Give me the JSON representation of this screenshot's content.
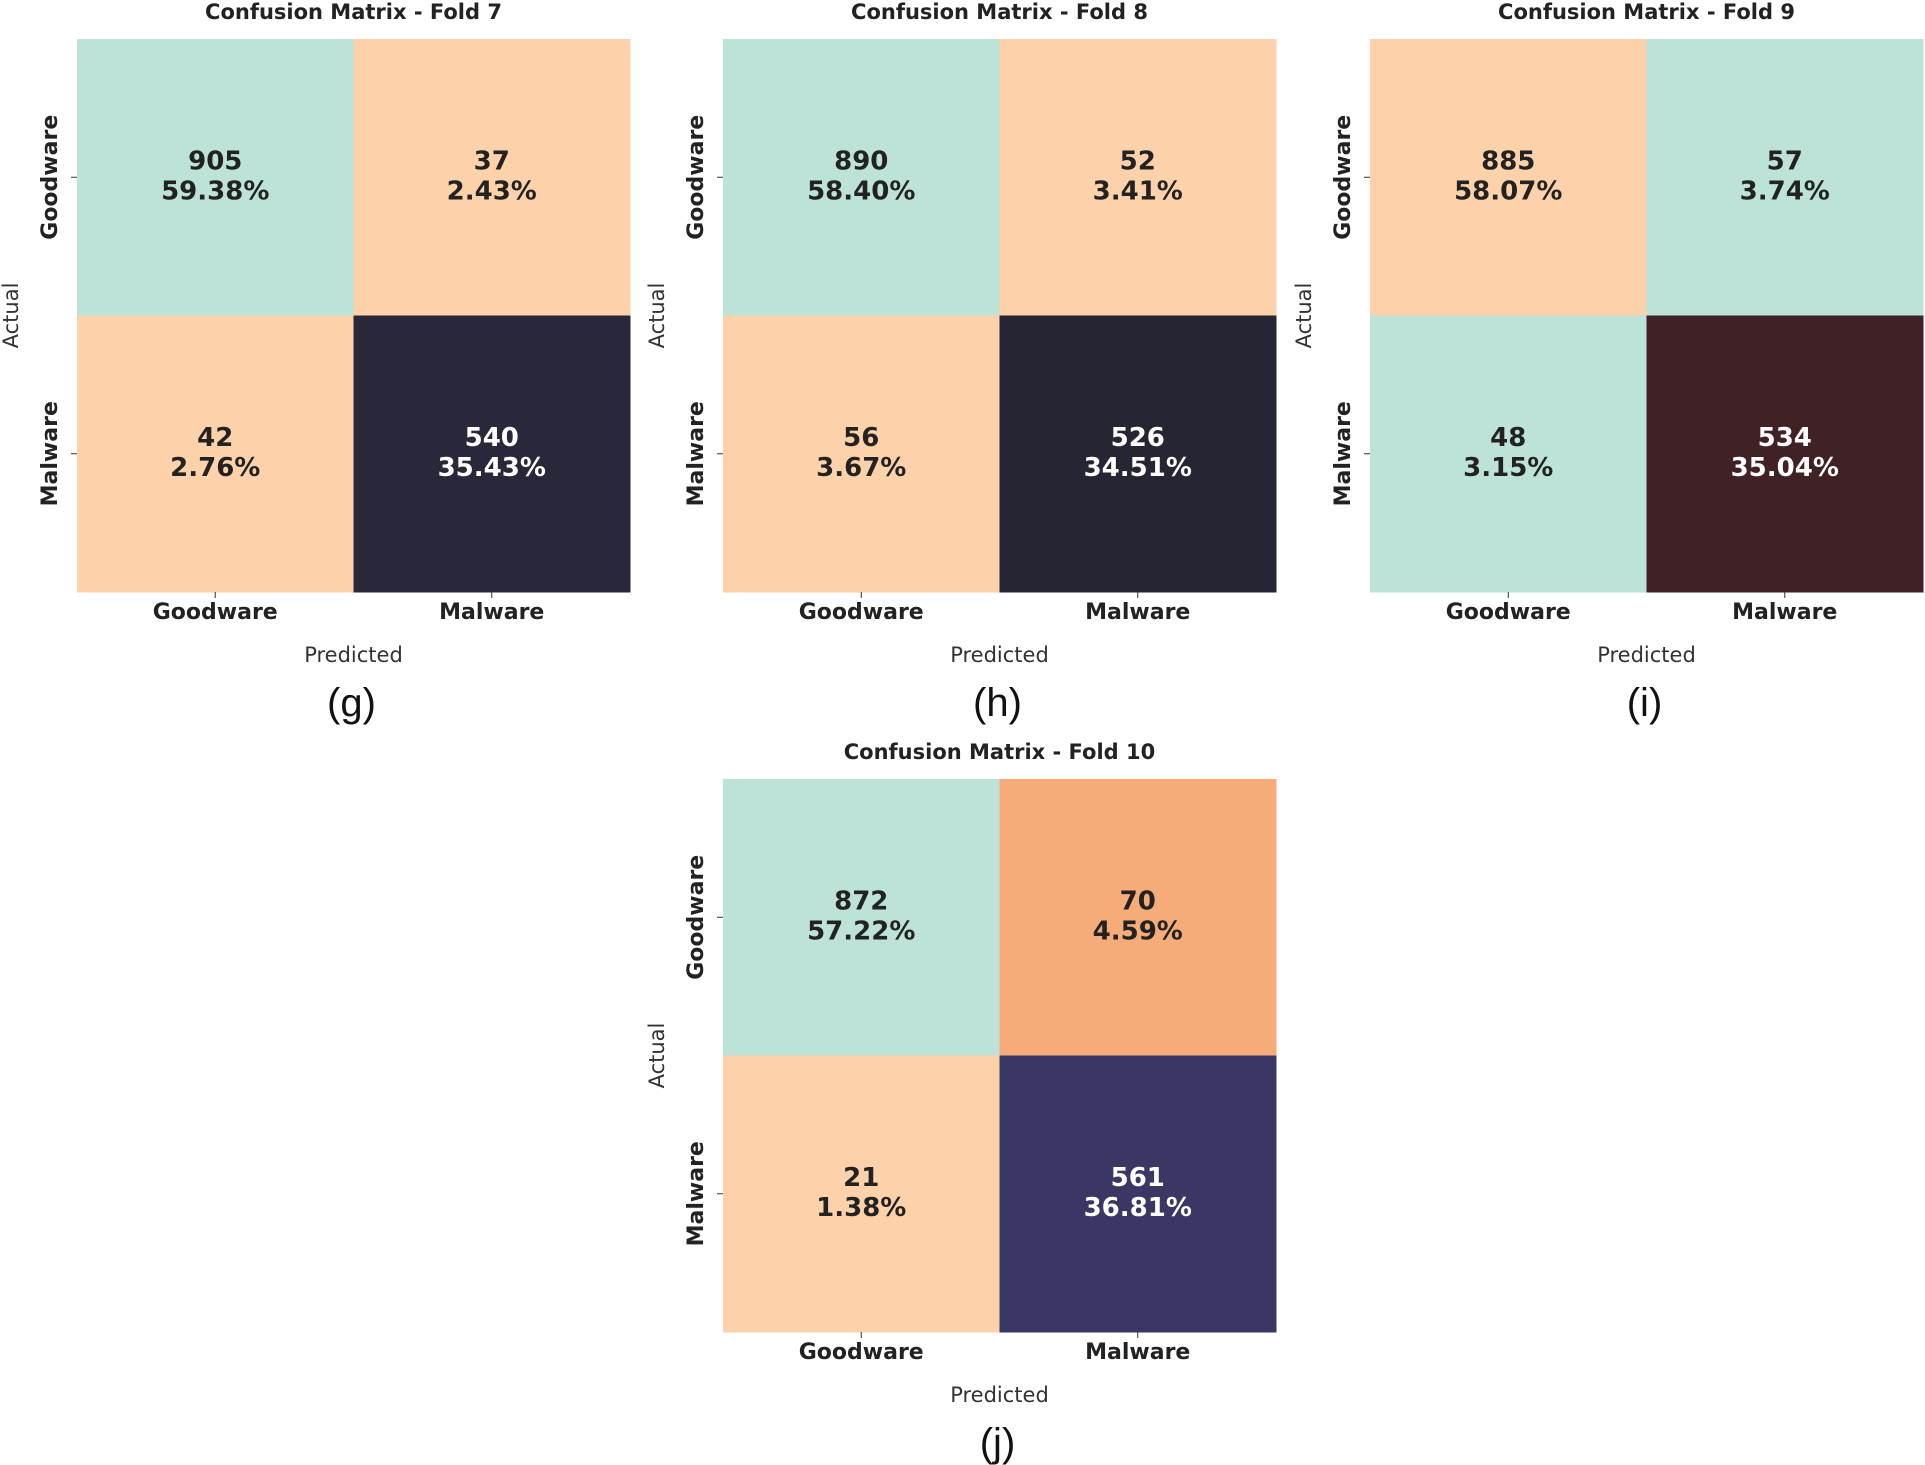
{
  "chart_data": [
    {
      "type": "heatmap",
      "title": "Confusion Matrix - Fold 7",
      "xlabel": "Predicted",
      "ylabel": "Actual",
      "x_categories": [
        "Goodware",
        "Malware"
      ],
      "y_categories": [
        "Goodware",
        "Malware"
      ],
      "values": [
        [
          905,
          37
        ],
        [
          42,
          540
        ]
      ],
      "percentages": [
        [
          "59.38%",
          "2.43%"
        ],
        [
          "2.76%",
          "35.43%"
        ]
      ],
      "cell_colors": [
        [
          "#bde3d9",
          "#fdd2ab"
        ],
        [
          "#fdd2ab",
          "#29283b"
        ]
      ],
      "text_colors": [
        [
          "#222222",
          "#222222"
        ],
        [
          "#222222",
          "#ffffff"
        ]
      ],
      "caption": "(g)"
    },
    {
      "type": "heatmap",
      "title": "Confusion Matrix - Fold 8",
      "xlabel": "Predicted",
      "ylabel": "Actual",
      "x_categories": [
        "Goodware",
        "Malware"
      ],
      "y_categories": [
        "Goodware",
        "Malware"
      ],
      "values": [
        [
          890,
          52
        ],
        [
          56,
          526
        ]
      ],
      "percentages": [
        [
          "58.40%",
          "3.41%"
        ],
        [
          "3.67%",
          "34.51%"
        ]
      ],
      "cell_colors": [
        [
          "#bde3d9",
          "#fdd2ab"
        ],
        [
          "#fdd2ab",
          "#252533"
        ]
      ],
      "text_colors": [
        [
          "#222222",
          "#222222"
        ],
        [
          "#222222",
          "#ffffff"
        ]
      ],
      "caption": "(h)"
    },
    {
      "type": "heatmap",
      "title": "Confusion Matrix - Fold 9",
      "xlabel": "Predicted",
      "ylabel": "Actual",
      "x_categories": [
        "Goodware",
        "Malware"
      ],
      "y_categories": [
        "Goodware",
        "Malware"
      ],
      "values": [
        [
          885,
          57
        ],
        [
          48,
          534
        ]
      ],
      "percentages": [
        [
          "58.07%",
          "3.74%"
        ],
        [
          "3.15%",
          "35.04%"
        ]
      ],
      "cell_colors": [
        [
          "#fdd2ab",
          "#bde3d9"
        ],
        [
          "#bde3d9",
          "#3f2126"
        ]
      ],
      "text_colors": [
        [
          "#222222",
          "#222222"
        ],
        [
          "#222222",
          "#ffffff"
        ]
      ],
      "caption": "(i)"
    },
    {
      "type": "heatmap",
      "title": "Confusion Matrix - Fold 10",
      "xlabel": "Predicted",
      "ylabel": "Actual",
      "x_categories": [
        "Goodware",
        "Malware"
      ],
      "y_categories": [
        "Goodware",
        "Malware"
      ],
      "values": [
        [
          872,
          70
        ],
        [
          21,
          561
        ]
      ],
      "percentages": [
        [
          "57.22%",
          "4.59%"
        ],
        [
          "1.38%",
          "36.81%"
        ]
      ],
      "cell_colors": [
        [
          "#bde3d9",
          "#f5ac79"
        ],
        [
          "#fdd2ab",
          "#3b3765"
        ]
      ],
      "text_colors": [
        [
          "#222222",
          "#222222"
        ],
        [
          "#222222",
          "#ffffff"
        ]
      ],
      "caption": "(j)"
    }
  ]
}
